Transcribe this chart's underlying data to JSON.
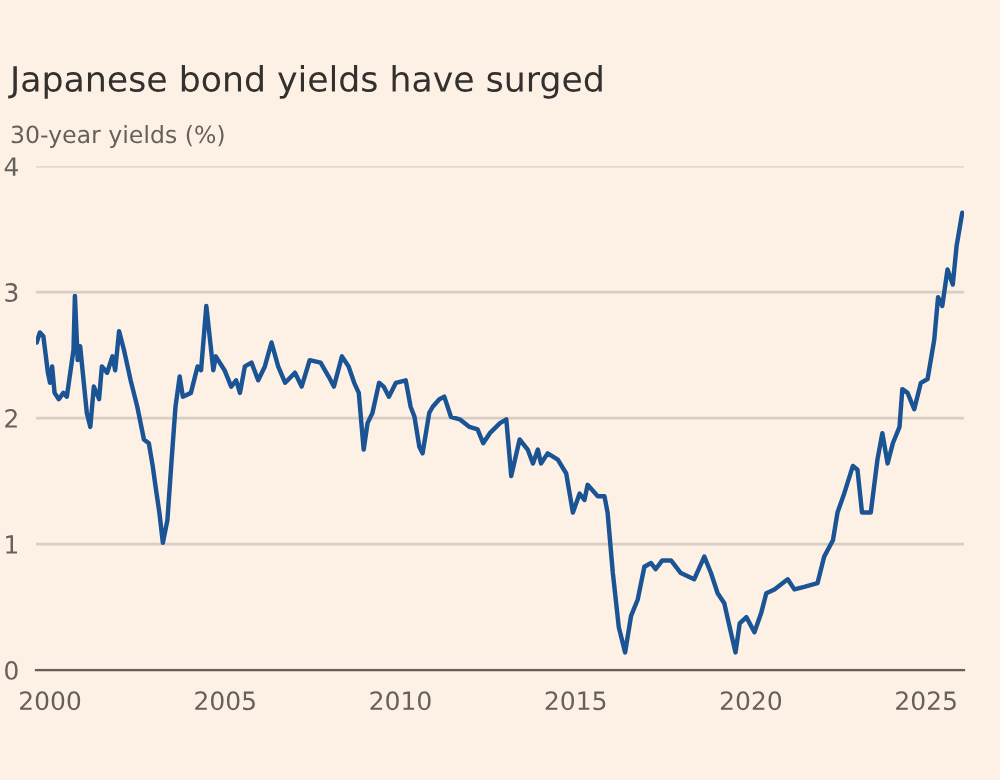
{
  "chart_data": {
    "type": "line",
    "title": "Japanese bond yields have surged",
    "ylabel": "30-year yields (%)",
    "x": [
      1999.62,
      1999.71,
      1999.81,
      1999.94,
      2000.0,
      2000.06,
      2000.13,
      2000.25,
      2000.38,
      2000.48,
      2000.67,
      2000.71,
      2000.79,
      2000.86,
      2001.05,
      2001.15,
      2001.25,
      2001.4,
      2001.48,
      2001.63,
      2001.78,
      2001.86,
      2001.97,
      2002.11,
      2002.3,
      2002.49,
      2002.68,
      2002.82,
      2002.93,
      2003.01,
      2003.12,
      2003.22,
      2003.35,
      2003.47,
      2003.58,
      2003.7,
      2003.79,
      2004.02,
      2004.21,
      2004.31,
      2004.46,
      2004.66,
      2004.73,
      2004.98,
      2005.17,
      2005.31,
      2005.42,
      2005.56,
      2005.75,
      2005.94,
      2006.13,
      2006.32,
      2006.51,
      2006.71,
      2006.99,
      2007.18,
      2007.41,
      2007.72,
      2007.95,
      2008.1,
      2008.33,
      2008.52,
      2008.68,
      2008.81,
      2008.95,
      2009.06,
      2009.2,
      2009.39,
      2009.52,
      2009.67,
      2009.87,
      2010.15,
      2010.29,
      2010.4,
      2010.54,
      2010.63,
      2010.82,
      2010.92,
      2011.11,
      2011.25,
      2011.44,
      2011.69,
      2011.97,
      2012.2,
      2012.36,
      2012.55,
      2012.84,
      2013.02,
      2013.16,
      2013.4,
      2013.63,
      2013.78,
      2013.92,
      2014.01,
      2014.2,
      2014.49,
      2014.73,
      2014.92,
      2015.11,
      2015.25,
      2015.34,
      2015.63,
      2015.82,
      2015.91,
      2016.06,
      2016.23,
      2016.41,
      2016.58,
      2016.77,
      2016.96,
      2017.15,
      2017.28,
      2017.47,
      2017.72,
      2018.0,
      2018.38,
      2018.67,
      2018.86,
      2019.05,
      2019.24,
      2019.37,
      2019.56,
      2019.68,
      2019.87,
      2020.1,
      2020.29,
      2020.44,
      2020.67,
      2021.05,
      2021.24,
      2021.52,
      2021.9,
      2022.09,
      2022.34,
      2022.47,
      2022.66,
      2022.91,
      2023.04,
      2023.17,
      2023.42,
      2023.61,
      2023.75,
      2023.9,
      2024.05,
      2024.24,
      2024.32,
      2024.47,
      2024.66,
      2024.85,
      2025.04,
      2025.23,
      2025.34,
      2025.46,
      2025.61,
      2025.76,
      2025.87,
      2026.03
    ],
    "series": [
      {
        "color": "#1b5494",
        "values": [
          2.6,
          2.68,
          2.65,
          2.36,
          2.28,
          2.41,
          2.2,
          2.15,
          2.2,
          2.17,
          2.54,
          2.97,
          2.46,
          2.57,
          2.04,
          1.93,
          2.25,
          2.15,
          2.41,
          2.36,
          2.49,
          2.38,
          2.69,
          2.54,
          2.3,
          2.09,
          1.83,
          1.8,
          1.62,
          1.46,
          1.25,
          1.01,
          1.19,
          1.67,
          2.09,
          2.33,
          2.17,
          2.2,
          2.41,
          2.38,
          2.89,
          2.38,
          2.49,
          2.38,
          2.25,
          2.3,
          2.2,
          2.41,
          2.44,
          2.3,
          2.41,
          2.6,
          2.41,
          2.28,
          2.36,
          2.25,
          2.46,
          2.44,
          2.33,
          2.25,
          2.49,
          2.41,
          2.28,
          2.2,
          1.75,
          1.96,
          2.04,
          2.28,
          2.25,
          2.17,
          2.28,
          2.3,
          2.09,
          2.01,
          1.77,
          1.72,
          2.04,
          2.09,
          2.15,
          2.17,
          2.01,
          1.99,
          1.93,
          1.91,
          1.8,
          1.88,
          1.96,
          1.99,
          1.54,
          1.83,
          1.75,
          1.64,
          1.75,
          1.64,
          1.72,
          1.67,
          1.56,
          1.25,
          1.4,
          1.35,
          1.47,
          1.38,
          1.38,
          1.25,
          0.77,
          0.34,
          0.14,
          0.43,
          0.56,
          0.82,
          0.85,
          0.8,
          0.87,
          0.87,
          0.77,
          0.72,
          0.9,
          0.77,
          0.61,
          0.53,
          0.37,
          0.14,
          0.37,
          0.42,
          0.3,
          0.45,
          0.61,
          0.64,
          0.72,
          0.64,
          0.66,
          0.69,
          0.9,
          1.03,
          1.25,
          1.4,
          1.62,
          1.59,
          1.25,
          1.25,
          1.67,
          1.88,
          1.64,
          1.8,
          1.93,
          2.23,
          2.2,
          2.07,
          2.28,
          2.31,
          2.62,
          2.96,
          2.89,
          3.18,
          3.06,
          3.37,
          3.63
        ]
      }
    ],
    "xlim": [
      1999.6,
      2026.08
    ],
    "ylim": [
      0,
      4
    ],
    "xticks": [
      2000,
      2005,
      2010,
      2015,
      2020,
      2025
    ],
    "yticks": [
      0,
      1,
      2,
      3,
      4
    ],
    "grid": "y",
    "line_style": "solid"
  }
}
